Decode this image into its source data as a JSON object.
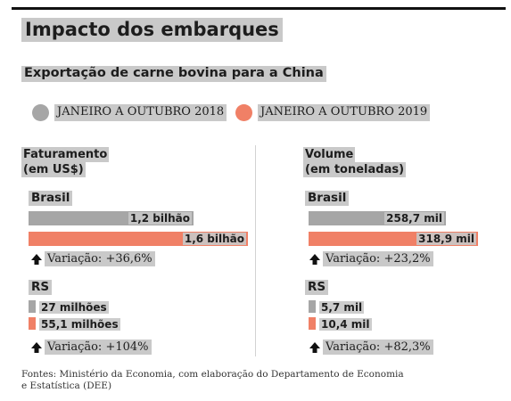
{
  "title": "Impacto dos embarques",
  "subtitle": "Exportação de carne bovina para a China",
  "legend": [
    {
      "label": "JANEIRO A OUTUBRO 2018",
      "color": "#a6a6a6"
    },
    {
      "label": "JANEIRO A OUTUBRO 2019",
      "color": "#f08066"
    }
  ],
  "source": "Fontes: Ministério da Economia, com elaboração do Departamento de Economia e Estatística (DEE)",
  "colors": {
    "series_2018": "#a6a6a6",
    "series_2019": "#f08066"
  },
  "chart_data": [
    {
      "type": "bar",
      "title_line1": "Faturamento",
      "title_line2": "(em US$)",
      "groups": [
        {
          "name": "Brasil",
          "series": [
            {
              "name": "JANEIRO A OUTUBRO 2018",
              "value": 1200000000,
              "label": "1,2 bilhão"
            },
            {
              "name": "JANEIRO A OUTUBRO 2019",
              "value": 1600000000,
              "label": "1,6 bilhão"
            }
          ],
          "variation": "Variação: +36,6%"
        },
        {
          "name": "RS",
          "series": [
            {
              "name": "JANEIRO A OUTUBRO 2018",
              "value": 27000000,
              "label": "27 milhões"
            },
            {
              "name": "JANEIRO A OUTUBRO 2019",
              "value": 55100000,
              "label": "55,1 milhões"
            }
          ],
          "variation": "Variação: +104%"
        }
      ]
    },
    {
      "type": "bar",
      "title_line1": "Volume",
      "title_line2": "(em toneladas)",
      "groups": [
        {
          "name": "Brasil",
          "series": [
            {
              "name": "JANEIRO A OUTUBRO 2018",
              "value": 258700,
              "label": "258,7 mil"
            },
            {
              "name": "JANEIRO A OUTUBRO 2019",
              "value": 318900,
              "label": "318,9 mil"
            }
          ],
          "variation": "Variação: +23,2%"
        },
        {
          "name": "RS",
          "series": [
            {
              "name": "JANEIRO A OUTUBRO 2018",
              "value": 5700,
              "label": "5,7 mil"
            },
            {
              "name": "JANEIRO A OUTUBRO 2019",
              "value": 10400,
              "label": "10,4 mil"
            }
          ],
          "variation": "Variação: +82,3%"
        }
      ]
    }
  ]
}
